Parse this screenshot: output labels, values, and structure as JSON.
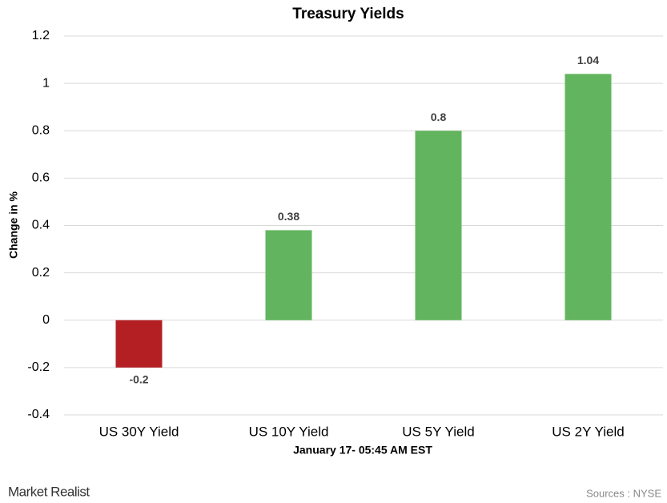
{
  "chart_data": {
    "type": "bar",
    "title": "Treasury Yields",
    "categories": [
      "US 30Y Yield",
      "US 10Y Yield",
      "US 5Y Yield",
      "US 2Y Yield"
    ],
    "values": [
      -0.2,
      0.38,
      0.8,
      1.04
    ],
    "colors": [
      "#b41f24",
      "#62b55e",
      "#62b55e",
      "#62b55e"
    ],
    "ylim": [
      -0.4,
      1.2
    ],
    "yticks": [
      -0.4,
      -0.2,
      0,
      0.2,
      0.4,
      0.6,
      0.8,
      1,
      1.2
    ],
    "grid": true,
    "x_label": "January 17- 05:45 AM EST",
    "y_label": "Change in %",
    "brand": "Market Realist",
    "source": "Sources : NYSE"
  }
}
